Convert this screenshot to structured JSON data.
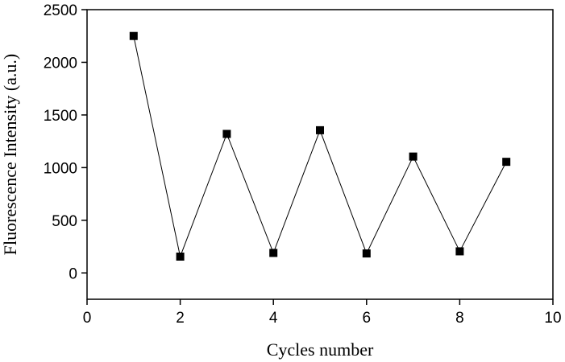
{
  "chart_data": {
    "type": "line",
    "x_label": "Cycles number",
    "y_label": "Fluorescence Intensity (a.u.)",
    "x": [
      1,
      2,
      3,
      4,
      5,
      6,
      7,
      8,
      9
    ],
    "series": [
      {
        "color": "#000000",
        "values": [
          2250,
          155,
          1320,
          190,
          1355,
          185,
          1105,
          205,
          1055
        ]
      }
    ],
    "xlim": [
      0,
      10
    ],
    "xticks": [
      0,
      2,
      4,
      6,
      8,
      10
    ],
    "ylim": [
      -250,
      2500
    ],
    "yticks": [
      0,
      500,
      1000,
      1500,
      2000,
      2500
    ]
  }
}
